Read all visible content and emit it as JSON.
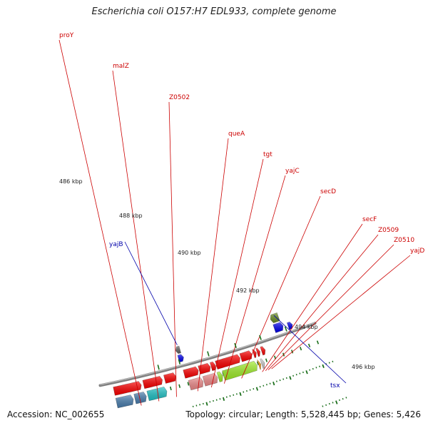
{
  "title": "Escherichia coli O157:H7 EDL933, complete genome",
  "footer": {
    "accession": "Accession: NC_002655",
    "summary": "Topology: circular; Length: 5,528,445 bp; Genes: 5,426"
  },
  "kbp_labels": [
    "486 kbp",
    "488 kbp",
    "490 kbp",
    "492 kbp",
    "494 kbp",
    "496 kbp"
  ],
  "gene_labels": [
    {
      "name": "proY",
      "color": "#cc0000"
    },
    {
      "name": "malZ",
      "color": "#cc0000"
    },
    {
      "name": "Z0502",
      "color": "#cc0000"
    },
    {
      "name": "queA",
      "color": "#cc0000"
    },
    {
      "name": "tgt",
      "color": "#cc0000"
    },
    {
      "name": "yajC",
      "color": "#cc0000"
    },
    {
      "name": "secD",
      "color": "#cc0000"
    },
    {
      "name": "secF",
      "color": "#cc0000"
    },
    {
      "name": "Z0509",
      "color": "#cc0000"
    },
    {
      "name": "Z0510",
      "color": "#cc0000"
    },
    {
      "name": "yajD",
      "color": "#cc0000"
    },
    {
      "name": "yajB",
      "color": "#0000aa"
    },
    {
      "name": "tsx",
      "color": "#0000aa"
    }
  ],
  "colors": {
    "cds": "#ff0000",
    "backbone": "#808080",
    "tick": "#1a6e1a",
    "rna_steel": "#4a7fb0",
    "cyan": "#20c4c8",
    "pink": "#f08c8c",
    "lime": "#a0f028",
    "orange": "#ff9900",
    "lightgray": "#cccccc",
    "darkgray": "#666666",
    "blue": "#0000ee",
    "olive": "#6b8e23"
  }
}
